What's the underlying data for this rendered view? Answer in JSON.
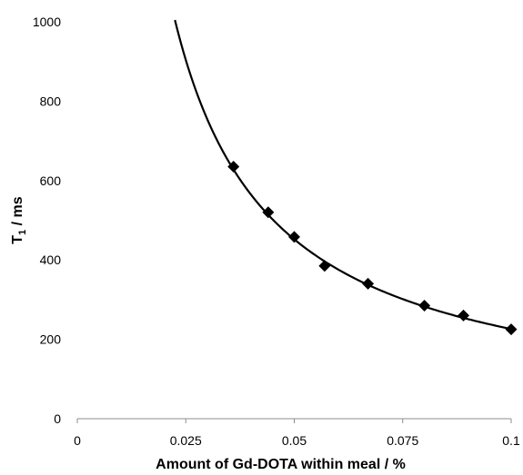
{
  "chart_data": {
    "type": "scatter",
    "title": "",
    "xlabel": "Amount of Gd-DOTA within meal / %",
    "ylabel_main": "T",
    "ylabel_sub": "1",
    "ylabel_rest": " / ms",
    "xlim": [
      0,
      0.1
    ],
    "ylim": [
      0,
      1000
    ],
    "x_ticks": [
      0,
      0.025,
      0.05,
      0.075,
      0.1
    ],
    "x_tick_labels": [
      "0",
      "0.025",
      "0.05",
      "0.075",
      "0.1"
    ],
    "y_ticks": [
      0,
      200,
      400,
      600,
      800,
      1000
    ],
    "y_tick_labels": [
      "0",
      "200",
      "400",
      "600",
      "800",
      "1000"
    ],
    "grid": false,
    "legend": "none",
    "series": [
      {
        "marker": "diamond",
        "x": [
          0.036,
          0.044,
          0.05,
          0.057,
          0.067,
          0.08,
          0.089,
          0.1
        ],
        "y": [
          635,
          520,
          458,
          385,
          340,
          285,
          260,
          225
        ]
      }
    ],
    "fit_curve": {
      "model": "power",
      "coefficient": 22.6,
      "exponent": -1,
      "x_range": [
        0.0225,
        0.1
      ]
    }
  }
}
